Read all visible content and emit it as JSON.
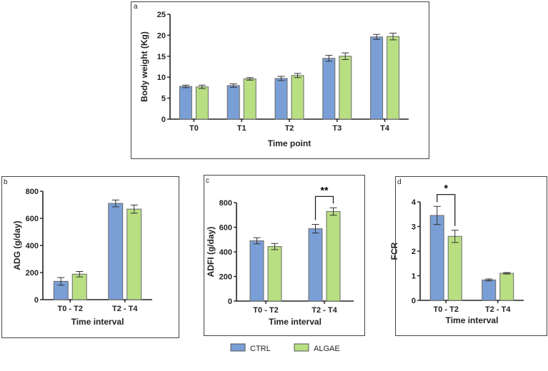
{
  "colors": {
    "CTRL": "#7a9fd6",
    "ALGAE": "#b8df82",
    "bar_border": "#6b6b6b",
    "axis": "#222222"
  },
  "legend": [
    {
      "name": "CTRL",
      "color": "#7a9fd6"
    },
    {
      "name": "ALGAE",
      "color": "#b8df82"
    }
  ],
  "chart_data": [
    {
      "panel": "a",
      "type": "bar",
      "xlabel": "Time point",
      "ylabel": "Body weight (Kg)",
      "categories": [
        "T0",
        "T1",
        "T2",
        "T3",
        "T4"
      ],
      "ylim": [
        0,
        25
      ],
      "yticks": [
        0,
        5,
        10,
        15,
        20,
        25
      ],
      "series": [
        {
          "name": "CTRL",
          "values": [
            7.8,
            8.0,
            9.7,
            14.5,
            19.6
          ],
          "errors": [
            0.3,
            0.4,
            0.5,
            0.7,
            0.6
          ]
        },
        {
          "name": "ALGAE",
          "values": [
            7.7,
            9.6,
            10.4,
            15.0,
            19.7
          ],
          "errors": [
            0.4,
            0.3,
            0.5,
            0.8,
            0.8
          ]
        }
      ],
      "annotations": []
    },
    {
      "panel": "b",
      "type": "bar",
      "xlabel": "Time interval",
      "ylabel": "ADG (g/day)",
      "categories": [
        "T0 - T2",
        "T2 - T4"
      ],
      "ylim": [
        0,
        800
      ],
      "yticks": [
        0,
        200,
        400,
        600,
        800
      ],
      "series": [
        {
          "name": "CTRL",
          "values": [
            135,
            710
          ],
          "errors": [
            28,
            25
          ]
        },
        {
          "name": "ALGAE",
          "values": [
            188,
            668
          ],
          "errors": [
            20,
            30
          ]
        }
      ],
      "annotations": []
    },
    {
      "panel": "c",
      "type": "bar",
      "xlabel": "Time interval",
      "ylabel": "ADFI (g/day)",
      "categories": [
        "T0 - T2",
        "T2 - T4"
      ],
      "ylim": [
        0,
        800
      ],
      "yticks": [
        0,
        200,
        400,
        600,
        800
      ],
      "series": [
        {
          "name": "CTRL",
          "values": [
            490,
            588
          ],
          "errors": [
            25,
            35
          ]
        },
        {
          "name": "ALGAE",
          "values": [
            443,
            728
          ],
          "errors": [
            25,
            30
          ]
        }
      ],
      "annotations": [
        {
          "category": "T2 - T4",
          "text": "**",
          "level": 850
        }
      ]
    },
    {
      "panel": "d",
      "type": "bar",
      "xlabel": "Time interval",
      "ylabel": "FCR",
      "categories": [
        "T0 - T2",
        "T2 - T4"
      ],
      "ylim": [
        0,
        4
      ],
      "yticks": [
        0,
        1,
        2,
        3,
        4
      ],
      "series": [
        {
          "name": "CTRL",
          "values": [
            3.45,
            0.83
          ],
          "errors": [
            0.37,
            0.04
          ]
        },
        {
          "name": "ALGAE",
          "values": [
            2.6,
            1.1
          ],
          "errors": [
            0.25,
            0.03
          ]
        }
      ],
      "annotations": [
        {
          "category": "T0 - T2",
          "text": "*",
          "level": 4.3
        }
      ]
    }
  ]
}
